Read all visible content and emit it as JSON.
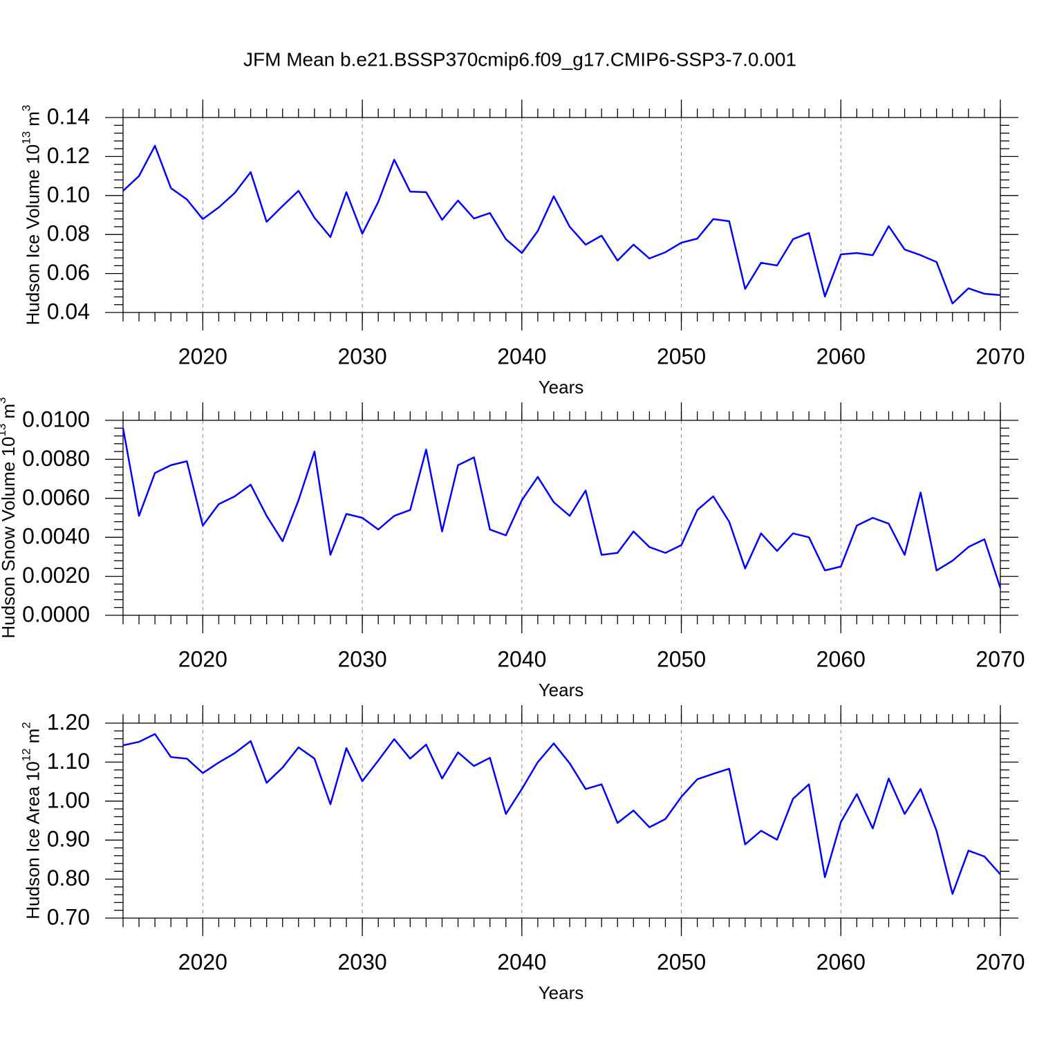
{
  "title": "JFM Mean b.e21.BSSP370cmip6.f09_g17.CMIP6-SSP3-7.0.001",
  "chart_data": [
    {
      "type": "line",
      "xlabel": "Years",
      "ylabel": {
        "text": "Hudson Ice Volume 10",
        "exponent": "13",
        "unit": "m",
        "unit_exponent": "3"
      },
      "x": [
        2015,
        2016,
        2017,
        2018,
        2019,
        2020,
        2021,
        2022,
        2023,
        2024,
        2025,
        2026,
        2027,
        2028,
        2029,
        2030,
        2031,
        2032,
        2033,
        2034,
        2035,
        2036,
        2037,
        2038,
        2039,
        2040,
        2041,
        2042,
        2043,
        2044,
        2045,
        2046,
        2047,
        2048,
        2049,
        2050,
        2051,
        2052,
        2053,
        2054,
        2055,
        2056,
        2057,
        2058,
        2059,
        2060,
        2061,
        2062,
        2063,
        2064,
        2065,
        2066,
        2067,
        2068,
        2069,
        2070
      ],
      "values": [
        0.1024,
        0.11,
        0.1255,
        0.1038,
        0.098,
        0.0879,
        0.0939,
        0.1013,
        0.112,
        0.0865,
        0.0946,
        0.1024,
        0.0886,
        0.0787,
        0.1017,
        0.0804,
        0.0967,
        0.1184,
        0.102,
        0.1017,
        0.0875,
        0.0974,
        0.0882,
        0.091,
        0.0776,
        0.0705,
        0.0818,
        0.0996,
        0.084,
        0.0748,
        0.0794,
        0.0666,
        0.0748,
        0.0677,
        0.0709,
        0.0758,
        0.0779,
        0.0879,
        0.0868,
        0.0521,
        0.0655,
        0.0641,
        0.0776,
        0.0808,
        0.0482,
        0.0698,
        0.0705,
        0.0694,
        0.0843,
        0.0723,
        0.0694,
        0.0659,
        0.0446,
        0.0524,
        0.0496,
        0.0489
      ],
      "color": "#0000ff",
      "xlim": [
        2015,
        2070
      ],
      "xticks": [
        2020,
        2030,
        2040,
        2050,
        2060,
        2070
      ],
      "ylim": [
        0.04,
        0.14
      ],
      "yticks": [
        0.04,
        0.06,
        0.08,
        {
          "value": 0.1,
          "label": "0.10"
        },
        0.12,
        0.14
      ],
      "grid": true
    },
    {
      "type": "line",
      "xlabel": "Years",
      "ylabel": {
        "text": "Hudson Snow Volume 10",
        "exponent": "13",
        "unit": "m",
        "unit_exponent": "3"
      },
      "x": [
        2015,
        2016,
        2017,
        2018,
        2019,
        2020,
        2021,
        2022,
        2023,
        2024,
        2025,
        2026,
        2027,
        2028,
        2029,
        2030,
        2031,
        2032,
        2033,
        2034,
        2035,
        2036,
        2037,
        2038,
        2039,
        2040,
        2041,
        2042,
        2043,
        2044,
        2045,
        2046,
        2047,
        2048,
        2049,
        2050,
        2051,
        2052,
        2053,
        2054,
        2055,
        2056,
        2057,
        2058,
        2059,
        2060,
        2061,
        2062,
        2063,
        2064,
        2065,
        2066,
        2067,
        2068,
        2069,
        2070
      ],
      "values": [
        0.0096,
        0.0051,
        0.0073,
        0.0077,
        0.0079,
        0.0046,
        0.0057,
        0.0061,
        0.0067,
        0.0051,
        0.0038,
        0.0059,
        0.0084,
        0.0031,
        0.0052,
        0.005,
        0.0044,
        0.0051,
        0.0054,
        0.0085,
        0.0043,
        0.0077,
        0.0081,
        0.0044,
        0.0041,
        0.0059,
        0.0071,
        0.0058,
        0.0051,
        0.0064,
        0.0031,
        0.0032,
        0.0043,
        0.0035,
        0.0032,
        0.0036,
        0.0054,
        0.0061,
        0.0048,
        0.0024,
        0.0042,
        0.0033,
        0.0042,
        0.004,
        0.0023,
        0.0025,
        0.0046,
        0.005,
        0.0047,
        0.0031,
        0.0063,
        0.0023,
        0.0028,
        0.0035,
        0.0039,
        0.0014
      ],
      "color": "#0000ff",
      "xlim": [
        2015,
        2070
      ],
      "xticks": [
        2020,
        2030,
        2040,
        2050,
        2060,
        2070
      ],
      "ylim": [
        0,
        0.01
      ],
      "yticks": [
        {
          "value": 0,
          "label": "0.0000"
        },
        {
          "value": 0.002,
          "label": "0.0020"
        },
        {
          "value": 0.004,
          "label": "0.0040"
        },
        {
          "value": 0.006,
          "label": "0.0060"
        },
        {
          "value": 0.008,
          "label": "0.0080"
        },
        {
          "value": 0.01,
          "label": "0.0100"
        }
      ],
      "grid": true
    },
    {
      "type": "line",
      "xlabel": "Years",
      "ylabel": {
        "text": "Hudson Ice Area 10",
        "exponent": "12",
        "unit": "m",
        "unit_exponent": "2"
      },
      "x": [
        2015,
        2016,
        2017,
        2018,
        2019,
        2020,
        2021,
        2022,
        2023,
        2024,
        2025,
        2026,
        2027,
        2028,
        2029,
        2030,
        2031,
        2032,
        2033,
        2034,
        2035,
        2036,
        2037,
        2038,
        2039,
        2040,
        2041,
        2042,
        2043,
        2044,
        2045,
        2046,
        2047,
        2048,
        2049,
        2050,
        2051,
        2052,
        2053,
        2054,
        2055,
        2056,
        2057,
        2058,
        2059,
        2060,
        2061,
        2062,
        2063,
        2064,
        2065,
        2066,
        2067,
        2068,
        2069,
        2070
      ],
      "values": [
        1.143,
        1.152,
        1.172,
        1.113,
        1.109,
        1.072,
        1.099,
        1.123,
        1.154,
        1.047,
        1.086,
        1.138,
        1.109,
        0.992,
        1.136,
        1.051,
        1.104,
        1.159,
        1.109,
        1.145,
        1.058,
        1.125,
        1.09,
        1.111,
        0.967,
        1.031,
        1.1,
        1.148,
        1.097,
        1.031,
        1.043,
        0.944,
        0.976,
        0.933,
        0.954,
        1.011,
        1.056,
        1.07,
        1.083,
        0.889,
        0.924,
        0.901,
        1.006,
        1.043,
        0.805,
        0.946,
        1.018,
        0.93,
        1.058,
        0.967,
        1.031,
        0.924,
        0.762,
        0.873,
        0.858,
        0.812
      ],
      "color": "#0000ff",
      "xlim": [
        2015,
        2070
      ],
      "xticks": [
        2020,
        2030,
        2040,
        2050,
        2060,
        2070
      ],
      "ylim": [
        0.7,
        1.2
      ],
      "yticks": [
        {
          "value": 0.7,
          "label": "0.70"
        },
        {
          "value": 0.8,
          "label": "0.80"
        },
        {
          "value": 0.9,
          "label": "0.90"
        },
        {
          "value": 1.0,
          "label": "1.00"
        },
        {
          "value": 1.1,
          "label": "1.10"
        },
        {
          "value": 1.2,
          "label": "1.20"
        }
      ],
      "grid": true
    }
  ]
}
